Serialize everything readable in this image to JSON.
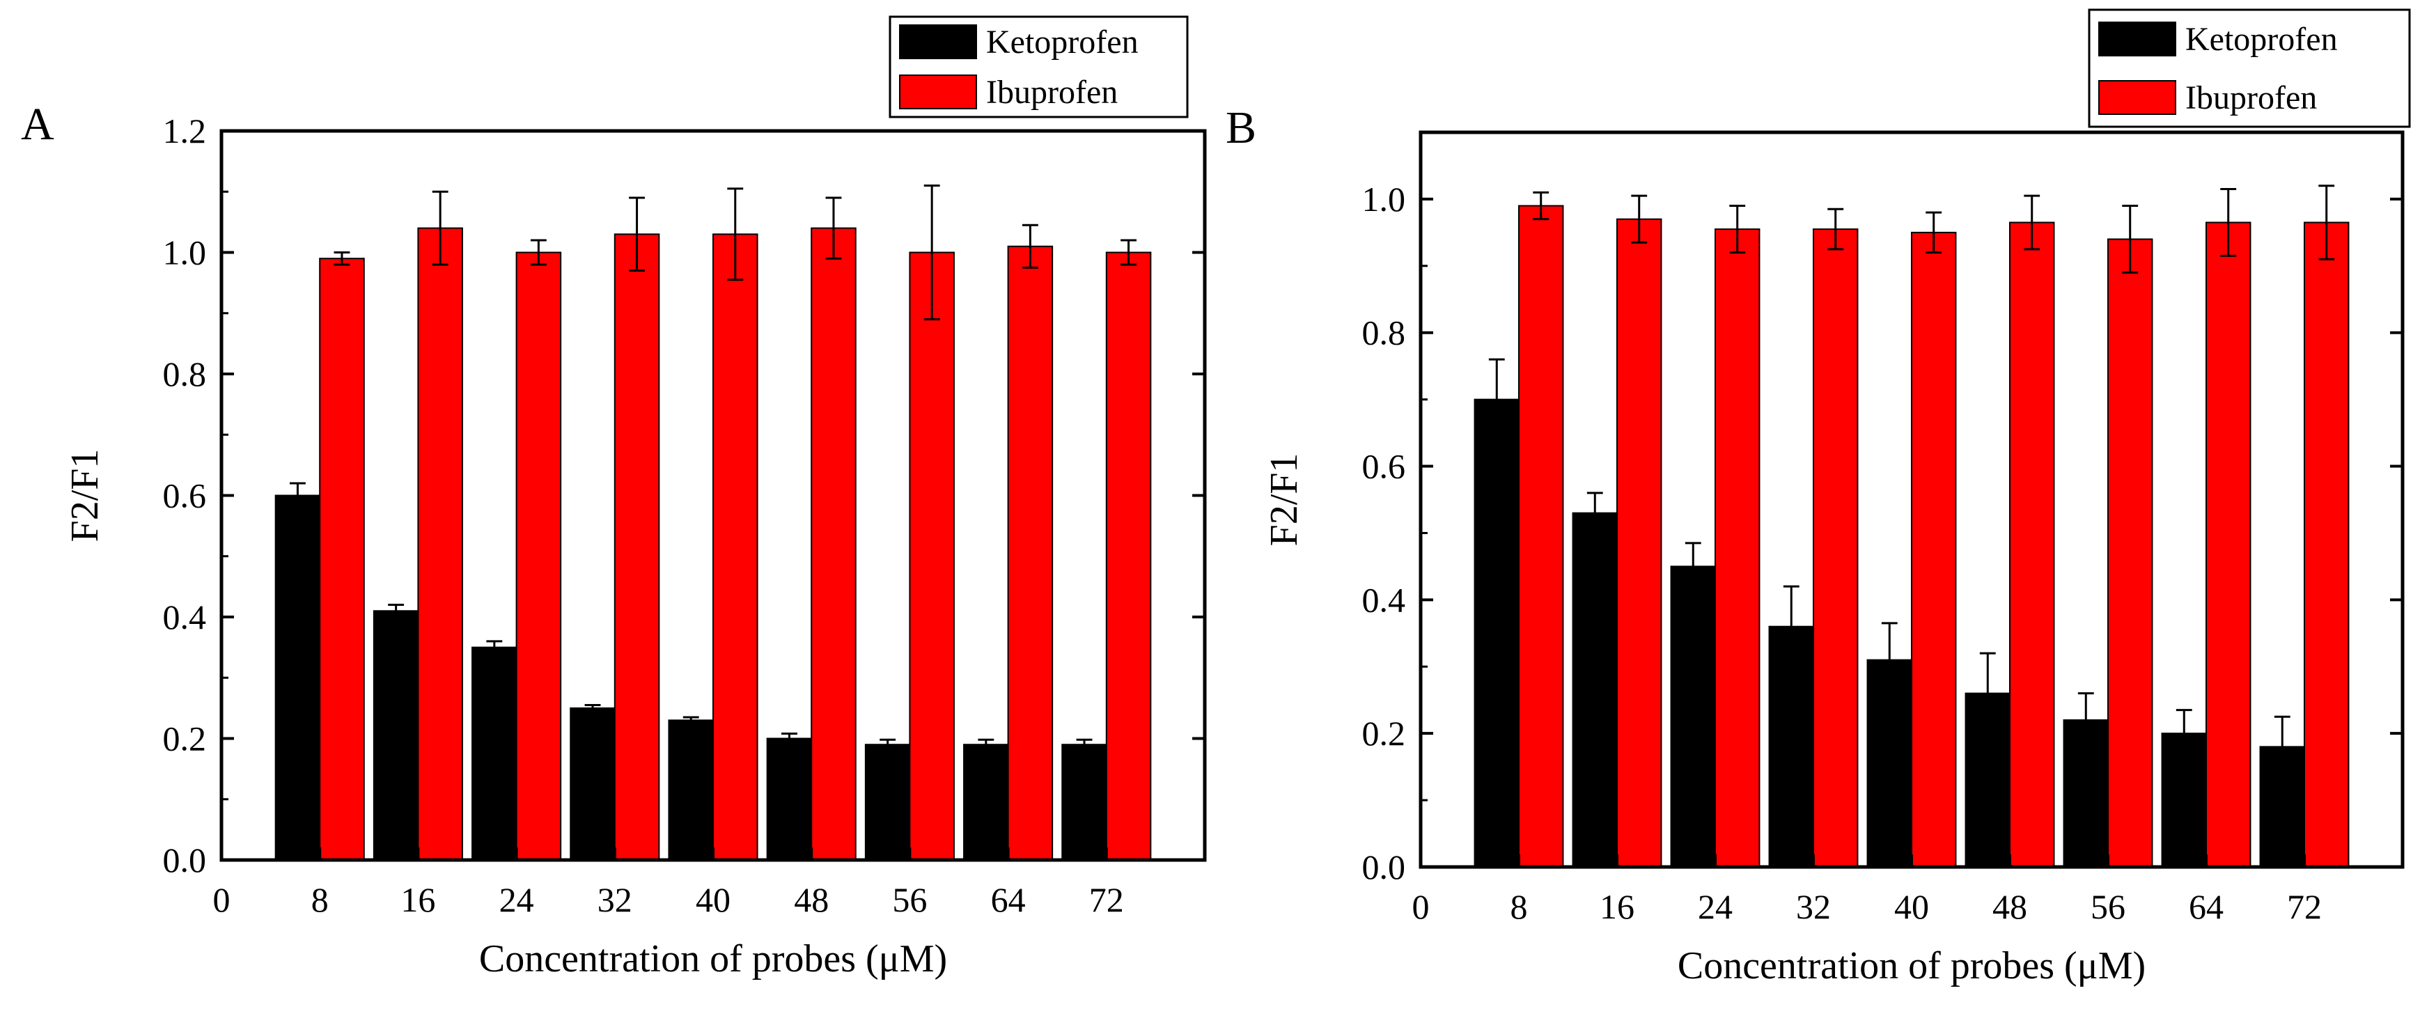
{
  "figure": {
    "colors": {
      "ketoprofen": "#000000",
      "ibuprofen": "#ff0000",
      "axis": "#000000"
    }
  },
  "chart_data": [
    {
      "type": "bar",
      "panel_label": "A",
      "title": "",
      "xlabel": "Concentration of probes (μM)",
      "ylabel": "F2/F1",
      "xlim": [
        0,
        80
      ],
      "ylim": [
        0,
        1.2
      ],
      "x_ticks": [
        "0",
        "8",
        "16",
        "24",
        "32",
        "40",
        "48",
        "56",
        "64",
        "72"
      ],
      "y_ticks": [
        "0.0",
        "0.2",
        "0.4",
        "0.6",
        "0.8",
        "1.0",
        "1.2"
      ],
      "categories": [
        8,
        16,
        24,
        32,
        40,
        48,
        56,
        64,
        72
      ],
      "legend_position": "top-right, outside plot",
      "series": [
        {
          "name": "Ketoprofen",
          "values": [
            0.6,
            0.41,
            0.35,
            0.25,
            0.23,
            0.2,
            0.19,
            0.19,
            0.19
          ],
          "errors": [
            0.02,
            0.01,
            0.01,
            0.005,
            0.005,
            0.008,
            0.008,
            0.008,
            0.008
          ]
        },
        {
          "name": "Ibuprofen",
          "values": [
            0.99,
            1.04,
            1.0,
            1.03,
            1.03,
            1.04,
            1.0,
            1.01,
            1.0
          ],
          "errors": [
            0.01,
            0.06,
            0.02,
            0.06,
            0.075,
            0.05,
            0.11,
            0.035,
            0.02
          ]
        }
      ]
    },
    {
      "type": "bar",
      "panel_label": "B",
      "title": "",
      "xlabel": "Concentration of probes (μM)",
      "ylabel": "F2/F1",
      "xlim": [
        0,
        80
      ],
      "ylim": [
        0,
        1.1
      ],
      "x_ticks": [
        "0",
        "8",
        "16",
        "24",
        "32",
        "40",
        "48",
        "56",
        "64",
        "72"
      ],
      "y_ticks": [
        "0.0",
        "0.2",
        "0.4",
        "0.6",
        "0.8",
        "1.0"
      ],
      "categories": [
        8,
        16,
        24,
        32,
        40,
        48,
        56,
        64,
        72
      ],
      "legend_position": "top-right, outside plot",
      "series": [
        {
          "name": "Ketoprofen",
          "values": [
            0.7,
            0.53,
            0.45,
            0.36,
            0.31,
            0.26,
            0.22,
            0.2,
            0.18
          ],
          "errors": [
            0.06,
            0.03,
            0.035,
            0.06,
            0.055,
            0.06,
            0.04,
            0.035,
            0.045
          ]
        },
        {
          "name": "Ibuprofen",
          "values": [
            0.99,
            0.97,
            0.955,
            0.955,
            0.95,
            0.965,
            0.94,
            0.965,
            0.965
          ],
          "errors": [
            0.02,
            0.035,
            0.035,
            0.03,
            0.03,
            0.04,
            0.05,
            0.05,
            0.055
          ]
        }
      ]
    }
  ]
}
